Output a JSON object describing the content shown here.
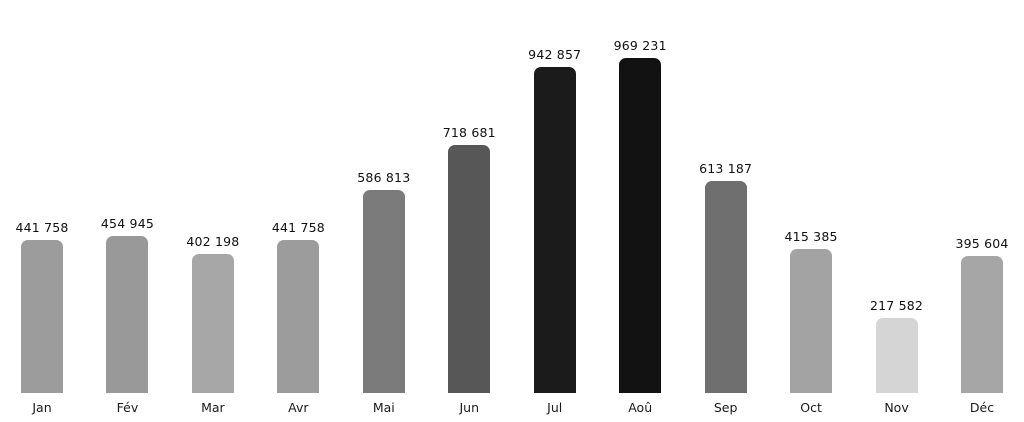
{
  "chart_data": {
    "type": "bar",
    "title": "",
    "xlabel": "",
    "ylabel": "",
    "categories": [
      "Jan",
      "Fév",
      "Mar",
      "Avr",
      "Mai",
      "Jun",
      "Jul",
      "Aoû",
      "Sep",
      "Oct",
      "Nov",
      "Déc"
    ],
    "values": [
      441758,
      454945,
      402198,
      441758,
      586813,
      718681,
      942857,
      969231,
      613187,
      415385,
      217582,
      395604
    ],
    "value_labels": [
      "441 758",
      "454 945",
      "402 198",
      "441 758",
      "586 813",
      "718 681",
      "942 857",
      "969 231",
      "613 187",
      "415 385",
      "217 582",
      "395 604"
    ],
    "bar_colors": [
      "#9c9c9c",
      "#999999",
      "#a7a7a7",
      "#9c9c9c",
      "#7b7b7b",
      "#575757",
      "#1b1b1b",
      "#121212",
      "#6f6f6f",
      "#a3a3a3",
      "#d5d5d5",
      "#a6a6a6"
    ],
    "ylim": [
      0,
      969231
    ],
    "grid": false,
    "legend": false,
    "axes_visible": false,
    "background_color": "#ffffff",
    "value_label_color": "#111111",
    "tick_label_color": "#1a1a1a",
    "color_encoding": "darker bar = higher value"
  }
}
